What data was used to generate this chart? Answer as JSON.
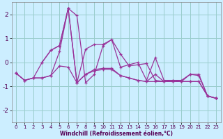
{
  "xlabel": "Windchill (Refroidissement éolien,°C)",
  "background_color": "#cceeff",
  "line_color": "#993399",
  "grid_color": "#99cccc",
  "xlim": [
    -0.5,
    23.5
  ],
  "ylim": [
    -2.5,
    2.5
  ],
  "xticks": [
    0,
    1,
    2,
    3,
    4,
    5,
    6,
    7,
    8,
    9,
    10,
    11,
    12,
    13,
    14,
    15,
    16,
    17,
    18,
    19,
    20,
    21,
    22,
    23
  ],
  "yticks": [
    -2,
    -1,
    0,
    1,
    2
  ],
  "lines": [
    {
      "x": [
        0,
        1,
        2,
        3,
        4,
        5,
        6,
        7,
        8,
        9,
        10,
        11,
        12,
        13,
        14,
        15,
        16,
        17,
        18,
        19,
        20,
        21,
        22,
        23
      ],
      "y": [
        -0.45,
        -0.75,
        -0.65,
        -0.65,
        -0.55,
        0.45,
        2.25,
        1.95,
        -0.85,
        -0.5,
        0.7,
        0.95,
        0.35,
        -0.15,
        -0.1,
        -0.05,
        -0.75,
        -0.8,
        -0.75,
        -0.8,
        -0.5,
        -0.55,
        -1.4,
        -1.5
      ]
    },
    {
      "x": [
        0,
        1,
        2,
        3,
        4,
        5,
        6,
        7,
        8,
        9,
        10,
        11,
        12,
        13,
        14,
        15,
        16,
        17,
        18,
        19,
        20,
        21,
        22,
        23
      ],
      "y": [
        -0.45,
        -0.75,
        -0.65,
        -0.65,
        -0.55,
        -0.15,
        -0.2,
        -0.85,
        -0.5,
        -0.35,
        -0.3,
        -0.3,
        -0.55,
        -0.65,
        -0.75,
        -0.8,
        -0.8,
        -0.8,
        -0.8,
        -0.8,
        -0.8,
        -0.8,
        -1.4,
        -1.5
      ]
    },
    {
      "x": [
        3,
        4,
        5,
        6,
        7,
        8,
        9,
        10,
        11,
        12,
        13,
        14,
        15,
        16,
        17,
        18,
        19,
        20,
        21,
        22,
        23
      ],
      "y": [
        0.0,
        0.5,
        0.7,
        2.25,
        -0.85,
        0.55,
        0.75,
        0.75,
        0.95,
        -0.2,
        -0.1,
        0.0,
        -0.75,
        0.2,
        -0.75,
        -0.75,
        -0.75,
        -0.5,
        -0.5,
        -1.4,
        -1.5
      ]
    },
    {
      "x": [
        0,
        1,
        2,
        3,
        4,
        5,
        6,
        7,
        8,
        9,
        10,
        11,
        12,
        13,
        14,
        15,
        16,
        17,
        18,
        19,
        20,
        21,
        22,
        23
      ],
      "y": [
        -0.45,
        -0.75,
        -0.65,
        0.0,
        0.5,
        0.7,
        2.25,
        -0.85,
        -0.5,
        -0.3,
        -0.25,
        -0.25,
        -0.55,
        -0.65,
        -0.75,
        -0.8,
        -0.5,
        -0.8,
        -0.8,
        -0.8,
        -0.8,
        -0.8,
        -1.4,
        -1.5
      ]
    }
  ]
}
